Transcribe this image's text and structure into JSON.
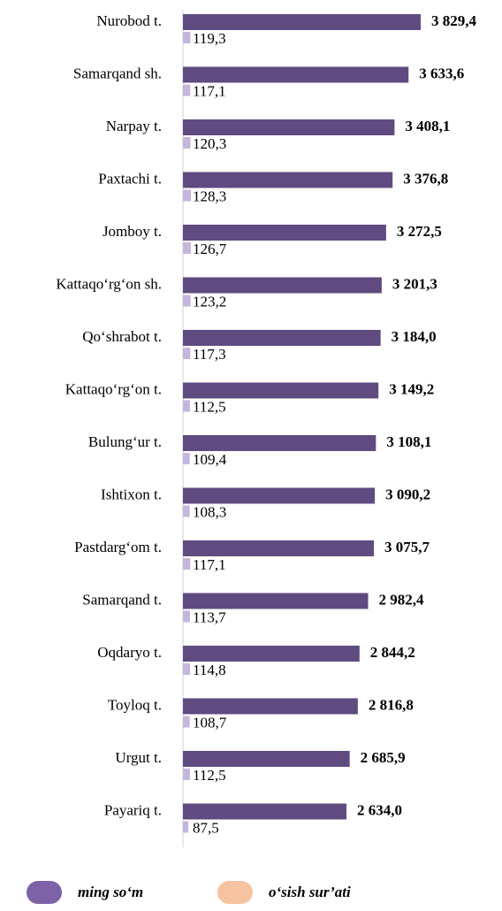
{
  "chart_data": {
    "type": "bar",
    "orientation": "horizontal",
    "categories": [
      "Nurobod t.",
      "Samarqand sh.",
      "Narpay t.",
      "Paxtachi t.",
      "Jomboy t.",
      "Kattaqo‘rg‘on sh.",
      "Qo‘shrabot t.",
      "Kattaqo‘rg‘on t.",
      "Bulung‘ur t.",
      "Ishtixon t.",
      "Pastdarg‘om t.",
      "Samarqand t.",
      "Oqdaryo t.",
      "Toyloq t.",
      "Urgut t.",
      "Payariq t."
    ],
    "series": [
      {
        "name": "ming so‘m",
        "color": "#5f4b80",
        "legend_color": "#7e62a8",
        "values": [
          3829.4,
          3633.6,
          3408.1,
          3376.8,
          3272.5,
          3201.3,
          3184.0,
          3149.2,
          3108.1,
          3090.2,
          3075.7,
          2982.4,
          2844.2,
          2816.8,
          2685.9,
          2634.0
        ],
        "value_labels": [
          "3 829,4",
          "3 633,6",
          "3 408,1",
          "3 376,8",
          "3 272,5",
          "3 201,3",
          "3 184,0",
          "3 149,2",
          "3 108,1",
          "3 090,2",
          "3 075,7",
          "2 982,4",
          "2 844,2",
          "2 816,8",
          "2 685,9",
          "2 634,0"
        ]
      },
      {
        "name": "o‘sish sur’ati",
        "color": "#c4b6dc",
        "legend_color": "#f5c3a0",
        "values": [
          119.3,
          117.1,
          120.3,
          128.3,
          126.7,
          123.2,
          117.3,
          112.5,
          109.4,
          108.3,
          117.1,
          113.7,
          114.8,
          108.7,
          112.5,
          87.5
        ],
        "value_labels": [
          "119,3",
          "117,1",
          "120,3",
          "128,3",
          "126,7",
          "123,2",
          "117,3",
          "112,5",
          "109,4",
          "108,3",
          "117,1",
          "113,7",
          "114,8",
          "108,7",
          "112,5",
          "87,5"
        ]
      }
    ],
    "legend": "bottom"
  }
}
